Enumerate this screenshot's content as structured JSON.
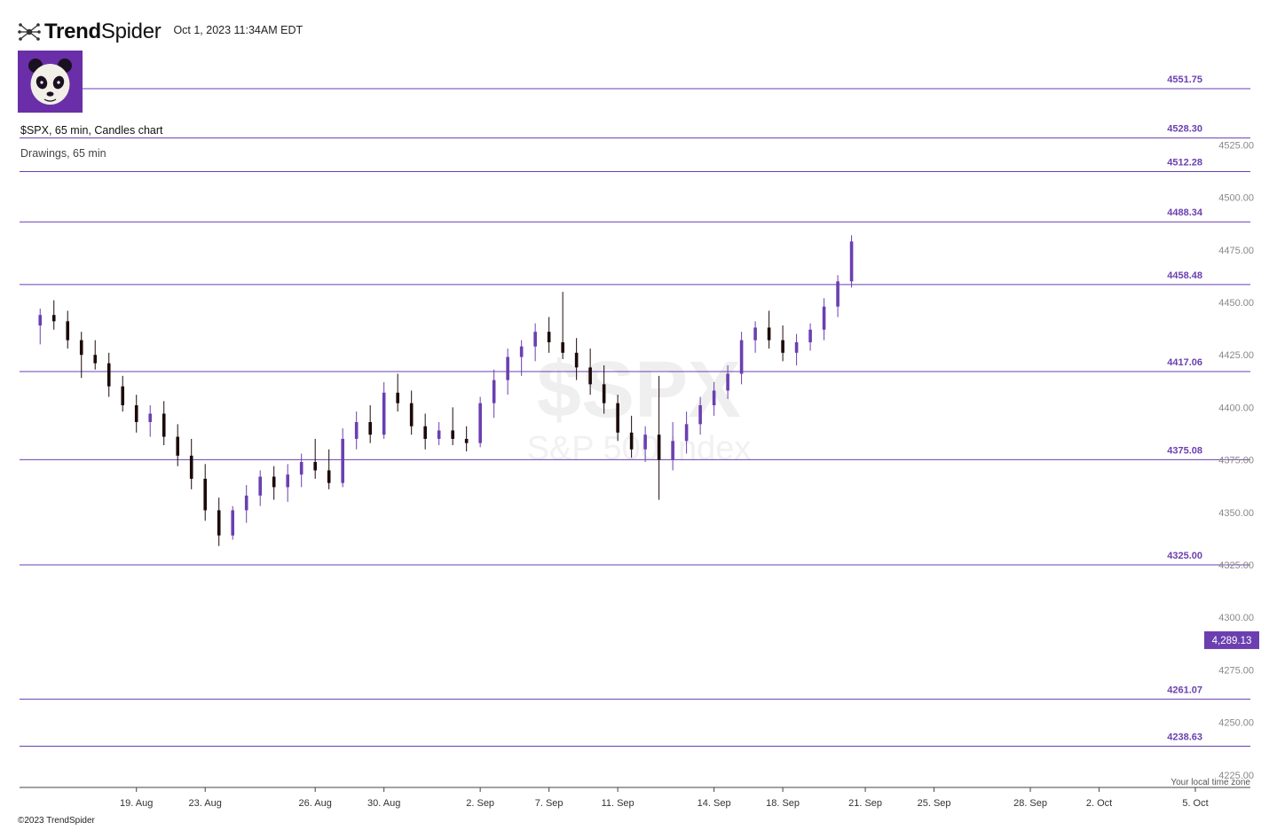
{
  "header": {
    "brand_bold": "Trend",
    "brand_light": "Spider",
    "timestamp": "Oct 1, 2023 11:34AM EDT"
  },
  "chart_title": "$SPX, 65 min, Candles chart",
  "drawings_label": "Drawings, 65 min",
  "watermark": {
    "symbol": "$SPX",
    "name": "S&P 500 Index"
  },
  "footer": {
    "copyright": "©2023 TrendSpider",
    "timezone_note": "Your local time zone"
  },
  "colors": {
    "accent": "#6b3fb0",
    "up_candle": "#6b3fb0",
    "down_candle": "#1c0a0a",
    "level_line": "#6b3fb0",
    "axis_text": "#888888"
  },
  "icons": {
    "logo": "trendspider-logo-icon",
    "avatar": "panda-avatar-icon"
  },
  "chart_data": {
    "type": "candlestick",
    "symbol": "$SPX",
    "interval": "65 min",
    "ylim": [
      4219,
      4594
    ],
    "y_ticks": [
      4225,
      4250,
      4275,
      4300,
      4325,
      4350,
      4375,
      4400,
      4425,
      4450,
      4475,
      4500,
      4525
    ],
    "x_tick_labels": [
      "19. Aug",
      "23. Aug",
      "26. Aug",
      "30. Aug",
      "2. Sep",
      "7. Sep",
      "11. Sep",
      "14. Sep",
      "18. Sep",
      "21. Sep",
      "25. Sep",
      "28. Sep",
      "2. Oct",
      "5. Oct"
    ],
    "x_tick_positions": [
      7,
      12,
      20,
      25,
      32,
      37,
      42,
      49,
      54,
      60,
      65,
      72,
      77,
      84
    ],
    "x_range": [
      -1.5,
      88
    ],
    "last_price": "4,289.13",
    "last_price_value": 4289.13,
    "levels": [
      {
        "label": "4551.75",
        "value": 4551.75
      },
      {
        "label": "4528.30",
        "value": 4528.3
      },
      {
        "label": "4512.28",
        "value": 4512.28
      },
      {
        "label": "4488.34",
        "value": 4488.34
      },
      {
        "label": "4458.48",
        "value": 4458.48
      },
      {
        "label": "4417.06",
        "value": 4417.06
      },
      {
        "label": "4375.08",
        "value": 4375.08
      },
      {
        "label": "4325.00",
        "value": 4325.0
      },
      {
        "label": "4261.07",
        "value": 4261.07
      },
      {
        "label": "4238.63",
        "value": 4238.63
      }
    ],
    "candles_ohlc": [
      [
        4439,
        4447,
        4430,
        4444
      ],
      [
        4444,
        4451,
        4437,
        4441
      ],
      [
        4441,
        4446,
        4428,
        4432
      ],
      [
        4432,
        4436,
        4414,
        4425
      ],
      [
        4425,
        4432,
        4418,
        4421
      ],
      [
        4421,
        4426,
        4405,
        4410
      ],
      [
        4410,
        4415,
        4398,
        4401
      ],
      [
        4401,
        4406,
        4388,
        4393
      ],
      [
        4393,
        4401,
        4386,
        4397
      ],
      [
        4397,
        4403,
        4382,
        4386
      ],
      [
        4386,
        4392,
        4372,
        4377
      ],
      [
        4377,
        4385,
        4361,
        4366
      ],
      [
        4366,
        4373,
        4346,
        4351
      ],
      [
        4351,
        4357,
        4334,
        4339
      ],
      [
        4339,
        4353,
        4337,
        4351
      ],
      [
        4351,
        4363,
        4345,
        4358
      ],
      [
        4358,
        4370,
        4353,
        4367
      ],
      [
        4367,
        4372,
        4356,
        4362
      ],
      [
        4362,
        4373,
        4355,
        4368
      ],
      [
        4368,
        4378,
        4362,
        4374
      ],
      [
        4374,
        4385,
        4366,
        4370
      ],
      [
        4370,
        4380,
        4361,
        4364
      ],
      [
        4364,
        4390,
        4362,
        4385
      ],
      [
        4385,
        4398,
        4380,
        4393
      ],
      [
        4393,
        4401,
        4383,
        4387
      ],
      [
        4387,
        4412,
        4385,
        4407
      ],
      [
        4407,
        4416,
        4398,
        4402
      ],
      [
        4402,
        4408,
        4387,
        4391
      ],
      [
        4391,
        4397,
        4380,
        4385
      ],
      [
        4385,
        4393,
        4382,
        4389
      ],
      [
        4389,
        4400,
        4382,
        4385
      ],
      [
        4385,
        4391,
        4379,
        4383
      ],
      [
        4383,
        4405,
        4381,
        4402
      ],
      [
        4402,
        4418,
        4395,
        4413
      ],
      [
        4413,
        4428,
        4406,
        4424
      ],
      [
        4424,
        4432,
        4415,
        4429
      ],
      [
        4429,
        4440,
        4422,
        4436
      ],
      [
        4436,
        4443,
        4426,
        4431
      ],
      [
        4431,
        4455,
        4423,
        4426
      ],
      [
        4426,
        4433,
        4413,
        4419
      ],
      [
        4419,
        4428,
        4406,
        4411
      ],
      [
        4411,
        4420,
        4397,
        4402
      ],
      [
        4402,
        4406,
        4384,
        4388
      ],
      [
        4388,
        4396,
        4376,
        4380
      ],
      [
        4380,
        4391,
        4374,
        4387
      ],
      [
        4387,
        4415,
        4356,
        4375
      ],
      [
        4375,
        4393,
        4370,
        4384
      ],
      [
        4384,
        4398,
        4378,
        4392
      ],
      [
        4392,
        4405,
        4387,
        4401
      ],
      [
        4401,
        4412,
        4396,
        4408
      ],
      [
        4408,
        4420,
        4404,
        4416
      ],
      [
        4416,
        4436,
        4411,
        4432
      ],
      [
        4432,
        4441,
        4426,
        4438
      ],
      [
        4438,
        4446,
        4428,
        4432
      ],
      [
        4432,
        4439,
        4422,
        4426
      ],
      [
        4426,
        4435,
        4420,
        4431
      ],
      [
        4431,
        4440,
        4427,
        4437
      ],
      [
        4437,
        4452,
        4432,
        4448
      ],
      [
        4448,
        4463,
        4443,
        4460
      ],
      [
        4460,
        4482,
        4457,
        4479
      ]
    ]
  }
}
